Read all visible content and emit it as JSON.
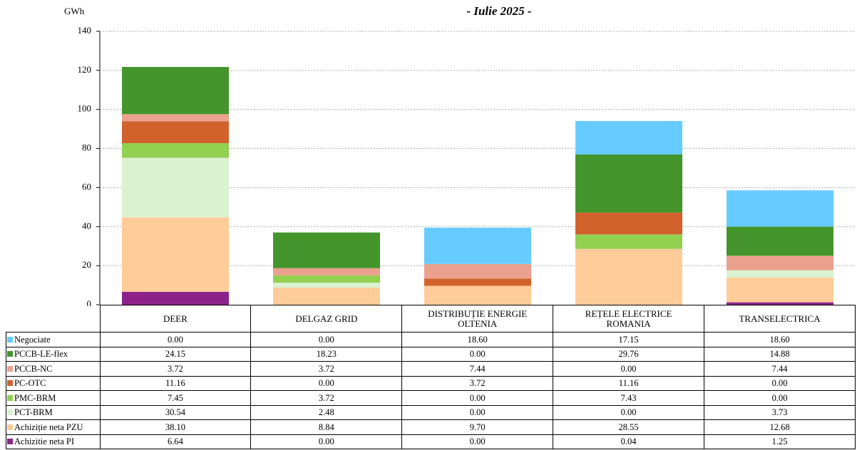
{
  "chart_data": {
    "type": "stacked-bar",
    "subtitle": "- Iulie 2025 -",
    "y_label": "GWh",
    "categories": [
      "DEER",
      "DELGAZ GRID",
      "DISTRIBUȚIE ENERGIE OLTENIA",
      "REȚELE ELECTRICE ROMANIA",
      "TRANSELECTRICA"
    ],
    "ylim": [
      0,
      140
    ],
    "yticks": [
      0,
      20,
      40,
      60,
      80,
      100,
      120,
      140
    ],
    "grid": true,
    "series": [
      {
        "name": "Negociate",
        "color": "#66ccff",
        "values": [
          0,
          0,
          18.6,
          17.15,
          18.6
        ],
        "value_labels": [
          "0.00",
          "0.00",
          "18.60",
          "17.15",
          "18.60"
        ]
      },
      {
        "name": "PCCB-LE-flex",
        "color": "#44952b",
        "values": [
          24.15,
          18.23,
          0,
          29.76,
          14.88
        ],
        "value_labels": [
          "24.15",
          "18.23",
          "0.00",
          "29.76",
          "14.88"
        ]
      },
      {
        "name": "PCCB-NC",
        "color": "#eba18e",
        "values": [
          3.72,
          3.72,
          7.44,
          0,
          7.44
        ],
        "value_labels": [
          "3.72",
          "3.72",
          "7.44",
          "0.00",
          "7.44"
        ]
      },
      {
        "name": "PC-OTC",
        "color": "#d2622b",
        "values": [
          11.16,
          0,
          3.72,
          11.16,
          0
        ],
        "value_labels": [
          "11.16",
          "0.00",
          "3.72",
          "11.16",
          "0.00"
        ]
      },
      {
        "name": "PMC-BRM",
        "color": "#92d050",
        "values": [
          7.45,
          3.72,
          0,
          7.43,
          0
        ],
        "value_labels": [
          "7.45",
          "3.72",
          "0.00",
          "7.43",
          "0.00"
        ]
      },
      {
        "name": "PCT-BRM",
        "color": "#d9f2d0",
        "values": [
          30.54,
          2.48,
          0,
          0,
          3.73
        ],
        "value_labels": [
          "30.54",
          "2.48",
          "0.00",
          "0.00",
          "3.73"
        ]
      },
      {
        "name": "Achiziție neta PZU",
        "color": "#ffcc99",
        "values": [
          38.1,
          8.84,
          9.7,
          28.55,
          12.68
        ],
        "value_labels": [
          "38.10",
          "8.84",
          "9.70",
          "28.55",
          "12.68"
        ]
      },
      {
        "name": "Achizitie neta PI",
        "color": "#8b2289",
        "values": [
          6.64,
          0,
          0,
          0.04,
          1.25
        ],
        "value_labels": [
          "6.64",
          "0.00",
          "0.00",
          "0.04",
          "1.25"
        ]
      }
    ]
  }
}
